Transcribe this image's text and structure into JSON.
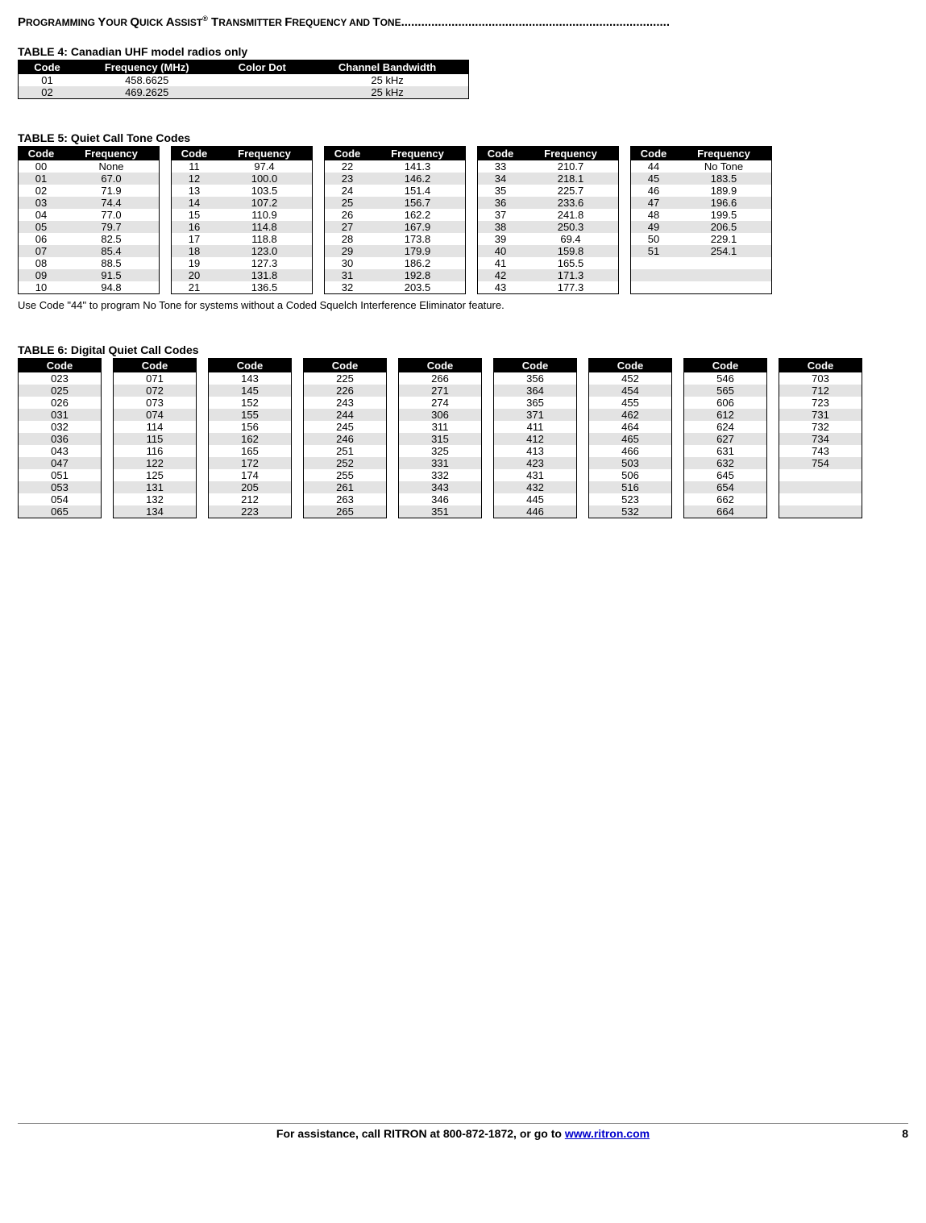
{
  "header": {
    "title_prefix": "P",
    "title_rest": "ROGRAMMING ",
    "title_y": "Y",
    "title_your": "OUR ",
    "title_q": "Q",
    "title_quick": "UICK ",
    "title_a": "A",
    "title_assist": "SSIST",
    "title_reg": "®",
    "title_t": " T",
    "title_trans": "RANSMITTER ",
    "title_f": "F",
    "title_freq": "REQUENCY AND ",
    "title_to": "T",
    "title_tone": "ONE",
    "dots": "................................................................................"
  },
  "table4": {
    "title": "TABLE 4:  Canadian UHF model radios only",
    "headers": [
      "Code",
      "Frequency (MHz)",
      "Color Dot",
      "Channel Bandwidth"
    ],
    "rows": [
      [
        "01",
        "458.6625",
        "",
        "25 kHz"
      ],
      [
        "02",
        "469.2625",
        "",
        "25 kHz"
      ]
    ]
  },
  "table5": {
    "title": "TABLE 5:  Quiet Call Tone Codes",
    "headers": [
      "Code",
      "Frequency"
    ],
    "cols": [
      [
        [
          "00",
          "None"
        ],
        [
          "01",
          "67.0"
        ],
        [
          "02",
          "71.9"
        ],
        [
          "03",
          "74.4"
        ],
        [
          "04",
          "77.0"
        ],
        [
          "05",
          "79.7"
        ],
        [
          "06",
          "82.5"
        ],
        [
          "07",
          "85.4"
        ],
        [
          "08",
          "88.5"
        ],
        [
          "09",
          "91.5"
        ],
        [
          "10",
          "94.8"
        ]
      ],
      [
        [
          "11",
          "97.4"
        ],
        [
          "12",
          "100.0"
        ],
        [
          "13",
          "103.5"
        ],
        [
          "14",
          "107.2"
        ],
        [
          "15",
          "110.9"
        ],
        [
          "16",
          "114.8"
        ],
        [
          "17",
          "118.8"
        ],
        [
          "18",
          "123.0"
        ],
        [
          "19",
          "127.3"
        ],
        [
          "20",
          "131.8"
        ],
        [
          "21",
          "136.5"
        ]
      ],
      [
        [
          "22",
          "141.3"
        ],
        [
          "23",
          "146.2"
        ],
        [
          "24",
          "151.4"
        ],
        [
          "25",
          "156.7"
        ],
        [
          "26",
          "162.2"
        ],
        [
          "27",
          "167.9"
        ],
        [
          "28",
          "173.8"
        ],
        [
          "29",
          "179.9"
        ],
        [
          "30",
          "186.2"
        ],
        [
          "31",
          "192.8"
        ],
        [
          "32",
          "203.5"
        ]
      ],
      [
        [
          "33",
          "210.7"
        ],
        [
          "34",
          "218.1"
        ],
        [
          "35",
          "225.7"
        ],
        [
          "36",
          "233.6"
        ],
        [
          "37",
          "241.8"
        ],
        [
          "38",
          "250.3"
        ],
        [
          "39",
          "69.4"
        ],
        [
          "40",
          "159.8"
        ],
        [
          "41",
          "165.5"
        ],
        [
          "42",
          "171.3"
        ],
        [
          "43",
          "177.3"
        ]
      ],
      [
        [
          "44",
          "No Tone"
        ],
        [
          "45",
          "183.5"
        ],
        [
          "46",
          "189.9"
        ],
        [
          "47",
          "196.6"
        ],
        [
          "48",
          "199.5"
        ],
        [
          "49",
          "206.5"
        ],
        [
          "50",
          "229.1"
        ],
        [
          "51",
          "254.1"
        ],
        [
          "",
          ""
        ],
        [
          "",
          ""
        ],
        [
          "",
          ""
        ]
      ]
    ],
    "note": "Use Code \"44\" to program No Tone for systems without a Coded Squelch Interference Eliminator feature."
  },
  "table6": {
    "title": "TABLE 6:  Digital Quiet Call Codes",
    "header": "Code",
    "cols": [
      [
        "023",
        "025",
        "026",
        "031",
        "032",
        "036",
        "043",
        "047",
        "051",
        "053",
        "054",
        "065"
      ],
      [
        "071",
        "072",
        "073",
        "074",
        "114",
        "115",
        "116",
        "122",
        "125",
        "131",
        "132",
        "134"
      ],
      [
        "143",
        "145",
        "152",
        "155",
        "156",
        "162",
        "165",
        "172",
        "174",
        "205",
        "212",
        "223"
      ],
      [
        "225",
        "226",
        "243",
        "244",
        "245",
        "246",
        "251",
        "252",
        "255",
        "261",
        "263",
        "265"
      ],
      [
        "266",
        "271",
        "274",
        "306",
        "311",
        "315",
        "325",
        "331",
        "332",
        "343",
        "346",
        "351"
      ],
      [
        "356",
        "364",
        "365",
        "371",
        "411",
        "412",
        "413",
        "423",
        "431",
        "432",
        "445",
        "446"
      ],
      [
        "452",
        "454",
        "455",
        "462",
        "464",
        "465",
        "466",
        "503",
        "506",
        "516",
        "523",
        "532"
      ],
      [
        "546",
        "565",
        "606",
        "612",
        "624",
        "627",
        "631",
        "632",
        "645",
        "654",
        "662",
        "664"
      ],
      [
        "703",
        "712",
        "723",
        "731",
        "732",
        "734",
        "743",
        "754",
        "",
        "",
        "",
        ""
      ]
    ]
  },
  "footer": {
    "text_before": "For assistance, call RITRON at 800-872-1872, or go to ",
    "link": "www.ritron.com",
    "page": "8"
  }
}
